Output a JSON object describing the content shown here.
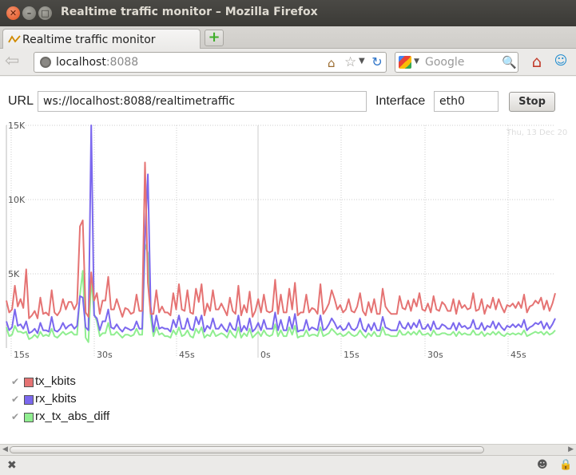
{
  "window": {
    "title": "Realtime traffic monitor – Mozilla Firefox"
  },
  "tab": {
    "label": "Realtime traffic monitor"
  },
  "address_bar": {
    "host": "localhost",
    "port": ":8088"
  },
  "search_bar": {
    "placeholder": "Google"
  },
  "form": {
    "url_label": "URL",
    "url_value": "ws://localhost:8088/realtimetraffic",
    "interface_label": "Interface",
    "interface_value": "eth0",
    "stop_label": "Stop"
  },
  "chart_data": {
    "type": "line",
    "timestamp_text": "Thu, 13 Dec 20",
    "y_ticks": [
      "15K",
      "10K",
      "5K"
    ],
    "y_tick_values": [
      15000,
      10000,
      5000
    ],
    "ylim": [
      0,
      15000
    ],
    "x_ticks": [
      "15s",
      "30s",
      "45s",
      "0s",
      "15s",
      "30s",
      "45s"
    ],
    "series": [
      {
        "name": "tx_kbits",
        "color": "#e57373",
        "values": [
          3200,
          2400,
          2600,
          4200,
          2800,
          3300,
          2700,
          5300,
          2000,
          2200,
          2500,
          2000,
          3400,
          2300,
          2400,
          2200,
          3900,
          2400,
          2200,
          2500,
          3300,
          2600,
          3100,
          3100,
          2600,
          3000,
          8200,
          8600,
          2400,
          2100,
          5100,
          3200,
          3700,
          2300,
          3200,
          3200,
          4800,
          2600,
          2600,
          3300,
          2700,
          2100,
          2700,
          2600,
          2300,
          2400,
          3600,
          2500,
          2500,
          12500,
          4400,
          2300,
          2300,
          3900,
          2400,
          2800,
          2400,
          2400,
          2200,
          3700,
          2600,
          4300,
          2600,
          2500,
          3900,
          2400,
          2300,
          4000,
          3100,
          4300,
          2200,
          3000,
          2500,
          3900,
          2600,
          2600,
          3000,
          2600,
          2200,
          3400,
          2500,
          2300,
          4200,
          2200,
          2900,
          2400,
          3800,
          2100,
          2500,
          3300,
          2400,
          3600,
          2500,
          2400,
          2500,
          4600,
          2300,
          3600,
          2400,
          2400,
          4000,
          2600,
          4400,
          2200,
          2400,
          2400,
          3600,
          2400,
          2700,
          2600,
          2300,
          4300,
          2300,
          2600,
          3000,
          3900,
          3300,
          2600,
          2900,
          2400,
          2600,
          3300,
          2500,
          2400,
          2800,
          3700,
          2500,
          2200,
          3100,
          2400,
          3300,
          2300,
          2300,
          4000,
          2800,
          2500,
          2300,
          2300,
          2300,
          3500,
          2700,
          2600,
          3200,
          2500,
          3300,
          2800,
          3700,
          2600,
          2500,
          3000,
          2400,
          3500,
          2600,
          2500,
          3100,
          2900,
          2500,
          2500,
          3300,
          2300,
          3200,
          2700,
          2900,
          2600,
          2700,
          3700,
          2500,
          2600,
          3300,
          2300,
          2900,
          2700,
          3400,
          2600,
          3300,
          2800,
          2400,
          2900,
          2800,
          3000,
          2700,
          3100,
          2700,
          3600,
          2400,
          2800,
          2900,
          3200,
          3000,
          3400,
          2600,
          3200,
          2500,
          3000,
          3700
        ]
      },
      {
        "name": "rx_kbits",
        "color": "#7b68ee",
        "values": [
          1800,
          1200,
          1400,
          2600,
          1500,
          1600,
          1300,
          1800,
          1000,
          1100,
          1300,
          1000,
          1700,
          1200,
          1200,
          1100,
          2100,
          1200,
          1100,
          1300,
          1700,
          1300,
          1500,
          1600,
          1300,
          1500,
          3500,
          3400,
          1400,
          1200,
          15000,
          2200,
          2000,
          1200,
          1800,
          1800,
          2600,
          1400,
          1300,
          1600,
          1300,
          1100,
          1400,
          1300,
          1200,
          1300,
          1800,
          1300,
          1300,
          7500,
          11700,
          2800,
          1100,
          2200,
          1300,
          1400,
          1300,
          1300,
          1100,
          1900,
          1400,
          2200,
          1300,
          1300,
          2000,
          1300,
          1200,
          2100,
          1600,
          2200,
          1100,
          1500,
          1300,
          2000,
          1300,
          1300,
          1600,
          1300,
          1100,
          1700,
          1300,
          1200,
          2200,
          1100,
          1500,
          1200,
          2000,
          1100,
          1300,
          1700,
          1200,
          1900,
          1300,
          1300,
          1300,
          2400,
          1200,
          1900,
          1200,
          1200,
          2100,
          1300,
          2300,
          1100,
          1200,
          1200,
          1900,
          1200,
          1400,
          1300,
          1200,
          2200,
          1200,
          1300,
          1600,
          2000,
          1700,
          1300,
          1500,
          1200,
          1300,
          1700,
          1300,
          1200,
          1400,
          2000,
          1300,
          1100,
          1600,
          1200,
          1700,
          1200,
          1200,
          2100,
          1400,
          1300,
          1200,
          1200,
          1200,
          1800,
          1400,
          1300,
          1700,
          1300,
          1700,
          1400,
          1900,
          1300,
          1300,
          1600,
          1200,
          1800,
          1300,
          1300,
          1600,
          1500,
          1300,
          1300,
          1700,
          1200,
          1700,
          1400,
          1500,
          1300,
          1400,
          1900,
          1300,
          1300,
          1700,
          1200,
          1500,
          1400,
          1800,
          1300,
          1700,
          1400,
          1200,
          1500,
          1400,
          1600,
          1400,
          1600,
          1400,
          1900,
          1200,
          1400,
          1500,
          1700,
          1600,
          1800,
          1300,
          1700,
          1300,
          1600,
          2000
        ]
      },
      {
        "name": "rx_tx_abs_diff",
        "color": "#90ee90",
        "values": [
          1400,
          800,
          900,
          1500,
          1100,
          1100,
          1000,
          1100,
          600,
          700,
          900,
          700,
          1100,
          800,
          900,
          800,
          1300,
          800,
          700,
          900,
          1100,
          900,
          1000,
          1100,
          900,
          900,
          3600,
          5200,
          700,
          400,
          4700,
          2300,
          1800,
          800,
          1000,
          1000,
          1700,
          900,
          900,
          1100,
          900,
          700,
          900,
          900,
          800,
          900,
          1300,
          900,
          900,
          7000,
          6400,
          2100,
          800,
          1400,
          900,
          1000,
          800,
          800,
          700,
          1200,
          900,
          1400,
          800,
          900,
          1200,
          800,
          700,
          1300,
          1000,
          1400,
          700,
          900,
          800,
          1200,
          800,
          900,
          1000,
          900,
          700,
          1200,
          900,
          700,
          1400,
          700,
          1000,
          800,
          1300,
          700,
          900,
          1100,
          800,
          1200,
          900,
          800,
          900,
          1600,
          800,
          1200,
          800,
          800,
          1400,
          900,
          1500,
          700,
          800,
          800,
          1200,
          800,
          900,
          900,
          800,
          1400,
          800,
          900,
          1000,
          1300,
          1100,
          900,
          1000,
          800,
          900,
          1100,
          900,
          800,
          900,
          1200,
          900,
          700,
          1000,
          800,
          1100,
          800,
          800,
          1400,
          900,
          900,
          800,
          800,
          800,
          1200,
          900,
          900,
          1100,
          900,
          1100,
          900,
          1200,
          900,
          900,
          1000,
          800,
          1200,
          900,
          900,
          1000,
          1000,
          900,
          900,
          1100,
          800,
          1100,
          900,
          1000,
          900,
          900,
          1200,
          900,
          900,
          1100,
          800,
          1000,
          900,
          1100,
          900,
          1100,
          900,
          800,
          1000,
          900,
          1000,
          900,
          1000,
          900,
          1200,
          800,
          900,
          1000,
          1100,
          1000,
          1100,
          900,
          1100,
          900,
          1000,
          1200
        ]
      }
    ]
  }
}
